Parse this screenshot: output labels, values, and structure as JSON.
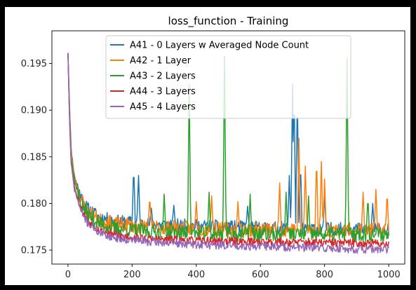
{
  "chart_data": {
    "type": "line",
    "title": "loss_function - Training",
    "xlabel": "",
    "ylabel": "",
    "xlim": [
      -50,
      1050
    ],
    "ylim": [
      0.1735,
      0.1985
    ],
    "x_ticks": [
      0,
      200,
      400,
      600,
      800,
      1000
    ],
    "y_ticks": [
      0.175,
      0.18,
      0.185,
      0.19,
      0.195
    ],
    "y_tick_labels": [
      "0.175",
      "0.180",
      "0.185",
      "0.190",
      "0.195"
    ],
    "x_tick_labels": [
      "0",
      "200",
      "400",
      "600",
      "800",
      "1000"
    ],
    "legend_position": "top-center",
    "grid": false,
    "series": [
      {
        "name": "A41 - 0 Layers w Averaged Node Count",
        "color": "#1f77b4",
        "seed": 11,
        "noise": 0.0007,
        "curve": [
          [
            0,
            0.1962
          ],
          [
            5,
            0.1905
          ],
          [
            10,
            0.1858
          ],
          [
            20,
            0.183
          ],
          [
            40,
            0.1808
          ],
          [
            60,
            0.1795
          ],
          [
            100,
            0.1785
          ],
          [
            150,
            0.1781
          ],
          [
            250,
            0.1778
          ],
          [
            400,
            0.1776
          ],
          [
            600,
            0.1774
          ],
          [
            800,
            0.1773
          ],
          [
            1000,
            0.1772
          ]
        ],
        "spikes": [
          [
            205,
            0.184
          ],
          [
            220,
            0.183
          ],
          [
            260,
            0.1795
          ],
          [
            330,
            0.1798
          ],
          [
            560,
            0.1797
          ],
          [
            690,
            0.183
          ],
          [
            700,
            0.1928
          ],
          [
            705,
            0.1925
          ],
          [
            715,
            0.1922
          ],
          [
            725,
            0.1845
          ],
          [
            800,
            0.1808
          ],
          [
            950,
            0.18
          ]
        ]
      },
      {
        "name": "A42 - 1 Layer",
        "color": "#ff7f0e",
        "seed": 23,
        "noise": 0.0008,
        "curve": [
          [
            0,
            0.1962
          ],
          [
            5,
            0.19
          ],
          [
            10,
            0.1855
          ],
          [
            20,
            0.1828
          ],
          [
            40,
            0.1806
          ],
          [
            60,
            0.1792
          ],
          [
            100,
            0.1782
          ],
          [
            150,
            0.1778
          ],
          [
            250,
            0.1775
          ],
          [
            400,
            0.1773
          ],
          [
            600,
            0.1772
          ],
          [
            800,
            0.1772
          ],
          [
            1000,
            0.1771
          ]
        ],
        "spikes": [
          [
            255,
            0.1808
          ],
          [
            400,
            0.1802
          ],
          [
            448,
            0.1808
          ],
          [
            530,
            0.1802
          ],
          [
            660,
            0.1822
          ],
          [
            720,
            0.187
          ],
          [
            740,
            0.184
          ],
          [
            775,
            0.185
          ],
          [
            790,
            0.1845
          ],
          [
            800,
            0.1826
          ],
          [
            920,
            0.1812
          ],
          [
            960,
            0.1815
          ],
          [
            995,
            0.1813
          ]
        ]
      },
      {
        "name": "A43 - 2 Layers",
        "color": "#2ca02c",
        "seed": 37,
        "noise": 0.0008,
        "curve": [
          [
            0,
            0.1962
          ],
          [
            5,
            0.1895
          ],
          [
            10,
            0.185
          ],
          [
            20,
            0.1825
          ],
          [
            40,
            0.18
          ],
          [
            60,
            0.1788
          ],
          [
            100,
            0.1778
          ],
          [
            150,
            0.1773
          ],
          [
            250,
            0.177
          ],
          [
            400,
            0.1768
          ],
          [
            600,
            0.1767
          ],
          [
            800,
            0.1767
          ],
          [
            1000,
            0.1767
          ]
        ],
        "spikes": [
          [
            300,
            0.181
          ],
          [
            378,
            0.1928
          ],
          [
            440,
            0.1812
          ],
          [
            488,
            0.1958
          ],
          [
            568,
            0.181
          ],
          [
            680,
            0.1812
          ],
          [
            750,
            0.1808
          ],
          [
            870,
            0.1955
          ],
          [
            935,
            0.1808
          ]
        ]
      },
      {
        "name": "A44 - 3 Layers",
        "color": "#d62728",
        "seed": 53,
        "noise": 0.00045,
        "curve": [
          [
            0,
            0.1962
          ],
          [
            5,
            0.189
          ],
          [
            10,
            0.1845
          ],
          [
            20,
            0.1818
          ],
          [
            40,
            0.1795
          ],
          [
            60,
            0.1782
          ],
          [
            100,
            0.1771
          ],
          [
            150,
            0.1766
          ],
          [
            250,
            0.1762
          ],
          [
            400,
            0.176
          ],
          [
            600,
            0.1759
          ],
          [
            800,
            0.1758
          ],
          [
            1000,
            0.1757
          ]
        ],
        "spikes": []
      },
      {
        "name": "A45 - 4 Layers",
        "color": "#9467bd",
        "seed": 71,
        "noise": 0.00045,
        "curve": [
          [
            0,
            0.1962
          ],
          [
            5,
            0.1888
          ],
          [
            10,
            0.1842
          ],
          [
            20,
            0.1815
          ],
          [
            40,
            0.1792
          ],
          [
            60,
            0.178
          ],
          [
            100,
            0.1768
          ],
          [
            150,
            0.1763
          ],
          [
            250,
            0.1759
          ],
          [
            400,
            0.1756
          ],
          [
            600,
            0.1754
          ],
          [
            800,
            0.1752
          ],
          [
            1000,
            0.175
          ]
        ],
        "spikes": []
      }
    ]
  }
}
